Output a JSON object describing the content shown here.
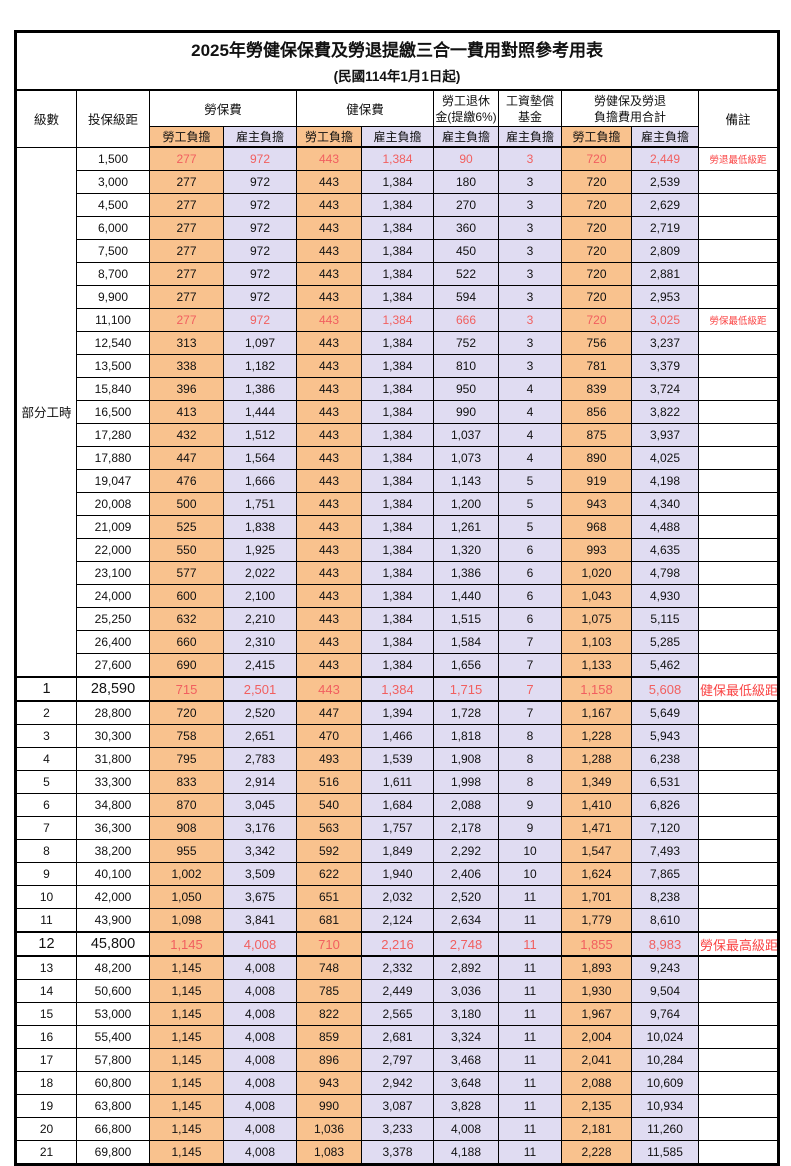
{
  "title": "2025年勞健保保費及勞退提繳三合一費用對照參考用表",
  "subtitle": "(民國114年1月1日起)",
  "header": {
    "level": "級數",
    "salary": "投保級距",
    "labor": "勞保費",
    "health": "健保費",
    "pension_line1": "勞工退休",
    "pension_line2": "金(提繳6%)",
    "wage_line1": "工資墊償",
    "wage_line2": "基金",
    "total_line1": "勞健保及勞退",
    "total_line2": "負擔費用合計",
    "remark": "備註",
    "employee": "勞工負擔",
    "employer": "雇主負擔"
  },
  "group_label": "部分工時",
  "colors": {
    "employee_bg": "#F9C28E",
    "employer_bg": "#E0DCF2",
    "value_red": "#F15F5F",
    "remark_red": "#FA4444"
  },
  "rows": [
    {
      "level": "",
      "salary": "1,500",
      "labor_emp": "277",
      "labor_er": "972",
      "health_emp": "443",
      "health_er": "1,384",
      "pension_er": "90",
      "wage_er": "3",
      "total_emp": "720",
      "total_er": "2,449",
      "remark": "勞退最低級距",
      "red": true,
      "emph": false
    },
    {
      "level": "",
      "salary": "3,000",
      "labor_emp": "277",
      "labor_er": "972",
      "health_emp": "443",
      "health_er": "1,384",
      "pension_er": "180",
      "wage_er": "3",
      "total_emp": "720",
      "total_er": "2,539",
      "remark": "",
      "red": false,
      "emph": false
    },
    {
      "level": "",
      "salary": "4,500",
      "labor_emp": "277",
      "labor_er": "972",
      "health_emp": "443",
      "health_er": "1,384",
      "pension_er": "270",
      "wage_er": "3",
      "total_emp": "720",
      "total_er": "2,629",
      "remark": "",
      "red": false,
      "emph": false
    },
    {
      "level": "",
      "salary": "6,000",
      "labor_emp": "277",
      "labor_er": "972",
      "health_emp": "443",
      "health_er": "1,384",
      "pension_er": "360",
      "wage_er": "3",
      "total_emp": "720",
      "total_er": "2,719",
      "remark": "",
      "red": false,
      "emph": false
    },
    {
      "level": "",
      "salary": "7,500",
      "labor_emp": "277",
      "labor_er": "972",
      "health_emp": "443",
      "health_er": "1,384",
      "pension_er": "450",
      "wage_er": "3",
      "total_emp": "720",
      "total_er": "2,809",
      "remark": "",
      "red": false,
      "emph": false
    },
    {
      "level": "",
      "salary": "8,700",
      "labor_emp": "277",
      "labor_er": "972",
      "health_emp": "443",
      "health_er": "1,384",
      "pension_er": "522",
      "wage_er": "3",
      "total_emp": "720",
      "total_er": "2,881",
      "remark": "",
      "red": false,
      "emph": false
    },
    {
      "level": "",
      "salary": "9,900",
      "labor_emp": "277",
      "labor_er": "972",
      "health_emp": "443",
      "health_er": "1,384",
      "pension_er": "594",
      "wage_er": "3",
      "total_emp": "720",
      "total_er": "2,953",
      "remark": "",
      "red": false,
      "emph": false
    },
    {
      "level": "",
      "salary": "11,100",
      "labor_emp": "277",
      "labor_er": "972",
      "health_emp": "443",
      "health_er": "1,384",
      "pension_er": "666",
      "wage_er": "3",
      "total_emp": "720",
      "total_er": "3,025",
      "remark": "勞保最低級距",
      "red": true,
      "emph": false
    },
    {
      "level": "",
      "salary": "12,540",
      "labor_emp": "313",
      "labor_er": "1,097",
      "health_emp": "443",
      "health_er": "1,384",
      "pension_er": "752",
      "wage_er": "3",
      "total_emp": "756",
      "total_er": "3,237",
      "remark": "",
      "red": false,
      "emph": false
    },
    {
      "level": "",
      "salary": "13,500",
      "labor_emp": "338",
      "labor_er": "1,182",
      "health_emp": "443",
      "health_er": "1,384",
      "pension_er": "810",
      "wage_er": "3",
      "total_emp": "781",
      "total_er": "3,379",
      "remark": "",
      "red": false,
      "emph": false
    },
    {
      "level": "",
      "salary": "15,840",
      "labor_emp": "396",
      "labor_er": "1,386",
      "health_emp": "443",
      "health_er": "1,384",
      "pension_er": "950",
      "wage_er": "4",
      "total_emp": "839",
      "total_er": "3,724",
      "remark": "",
      "red": false,
      "emph": false
    },
    {
      "level": "",
      "salary": "16,500",
      "labor_emp": "413",
      "labor_er": "1,444",
      "health_emp": "443",
      "health_er": "1,384",
      "pension_er": "990",
      "wage_er": "4",
      "total_emp": "856",
      "total_er": "3,822",
      "remark": "",
      "red": false,
      "emph": false
    },
    {
      "level": "",
      "salary": "17,280",
      "labor_emp": "432",
      "labor_er": "1,512",
      "health_emp": "443",
      "health_er": "1,384",
      "pension_er": "1,037",
      "wage_er": "4",
      "total_emp": "875",
      "total_er": "3,937",
      "remark": "",
      "red": false,
      "emph": false
    },
    {
      "level": "",
      "salary": "17,880",
      "labor_emp": "447",
      "labor_er": "1,564",
      "health_emp": "443",
      "health_er": "1,384",
      "pension_er": "1,073",
      "wage_er": "4",
      "total_emp": "890",
      "total_er": "4,025",
      "remark": "",
      "red": false,
      "emph": false
    },
    {
      "level": "",
      "salary": "19,047",
      "labor_emp": "476",
      "labor_er": "1,666",
      "health_emp": "443",
      "health_er": "1,384",
      "pension_er": "1,143",
      "wage_er": "5",
      "total_emp": "919",
      "total_er": "4,198",
      "remark": "",
      "red": false,
      "emph": false
    },
    {
      "level": "",
      "salary": "20,008",
      "labor_emp": "500",
      "labor_er": "1,751",
      "health_emp": "443",
      "health_er": "1,384",
      "pension_er": "1,200",
      "wage_er": "5",
      "total_emp": "943",
      "total_er": "4,340",
      "remark": "",
      "red": false,
      "emph": false
    },
    {
      "level": "",
      "salary": "21,009",
      "labor_emp": "525",
      "labor_er": "1,838",
      "health_emp": "443",
      "health_er": "1,384",
      "pension_er": "1,261",
      "wage_er": "5",
      "total_emp": "968",
      "total_er": "4,488",
      "remark": "",
      "red": false,
      "emph": false
    },
    {
      "level": "",
      "salary": "22,000",
      "labor_emp": "550",
      "labor_er": "1,925",
      "health_emp": "443",
      "health_er": "1,384",
      "pension_er": "1,320",
      "wage_er": "6",
      "total_emp": "993",
      "total_er": "4,635",
      "remark": "",
      "red": false,
      "emph": false
    },
    {
      "level": "",
      "salary": "23,100",
      "labor_emp": "577",
      "labor_er": "2,022",
      "health_emp": "443",
      "health_er": "1,384",
      "pension_er": "1,386",
      "wage_er": "6",
      "total_emp": "1,020",
      "total_er": "4,798",
      "remark": "",
      "red": false,
      "emph": false
    },
    {
      "level": "",
      "salary": "24,000",
      "labor_emp": "600",
      "labor_er": "2,100",
      "health_emp": "443",
      "health_er": "1,384",
      "pension_er": "1,440",
      "wage_er": "6",
      "total_emp": "1,043",
      "total_er": "4,930",
      "remark": "",
      "red": false,
      "emph": false
    },
    {
      "level": "",
      "salary": "25,250",
      "labor_emp": "632",
      "labor_er": "2,210",
      "health_emp": "443",
      "health_er": "1,384",
      "pension_er": "1,515",
      "wage_er": "6",
      "total_emp": "1,075",
      "total_er": "5,115",
      "remark": "",
      "red": false,
      "emph": false
    },
    {
      "level": "",
      "salary": "26,400",
      "labor_emp": "660",
      "labor_er": "2,310",
      "health_emp": "443",
      "health_er": "1,384",
      "pension_er": "1,584",
      "wage_er": "7",
      "total_emp": "1,103",
      "total_er": "5,285",
      "remark": "",
      "red": false,
      "emph": false
    },
    {
      "level": "",
      "salary": "27,600",
      "labor_emp": "690",
      "labor_er": "2,415",
      "health_emp": "443",
      "health_er": "1,384",
      "pension_er": "1,656",
      "wage_er": "7",
      "total_emp": "1,133",
      "total_er": "5,462",
      "remark": "",
      "red": false,
      "emph": false
    },
    {
      "level": "1",
      "salary": "28,590",
      "labor_emp": "715",
      "labor_er": "2,501",
      "health_emp": "443",
      "health_er": "1,384",
      "pension_er": "1,715",
      "wage_er": "7",
      "total_emp": "1,158",
      "total_er": "5,608",
      "remark": "健保最低級距",
      "red": true,
      "emph": true
    },
    {
      "level": "2",
      "salary": "28,800",
      "labor_emp": "720",
      "labor_er": "2,520",
      "health_emp": "447",
      "health_er": "1,394",
      "pension_er": "1,728",
      "wage_er": "7",
      "total_emp": "1,167",
      "total_er": "5,649",
      "remark": "",
      "red": false,
      "emph": false
    },
    {
      "level": "3",
      "salary": "30,300",
      "labor_emp": "758",
      "labor_er": "2,651",
      "health_emp": "470",
      "health_er": "1,466",
      "pension_er": "1,818",
      "wage_er": "8",
      "total_emp": "1,228",
      "total_er": "5,943",
      "remark": "",
      "red": false,
      "emph": false
    },
    {
      "level": "4",
      "salary": "31,800",
      "labor_emp": "795",
      "labor_er": "2,783",
      "health_emp": "493",
      "health_er": "1,539",
      "pension_er": "1,908",
      "wage_er": "8",
      "total_emp": "1,288",
      "total_er": "6,238",
      "remark": "",
      "red": false,
      "emph": false
    },
    {
      "level": "5",
      "salary": "33,300",
      "labor_emp": "833",
      "labor_er": "2,914",
      "health_emp": "516",
      "health_er": "1,611",
      "pension_er": "1,998",
      "wage_er": "8",
      "total_emp": "1,349",
      "total_er": "6,531",
      "remark": "",
      "red": false,
      "emph": false
    },
    {
      "level": "6",
      "salary": "34,800",
      "labor_emp": "870",
      "labor_er": "3,045",
      "health_emp": "540",
      "health_er": "1,684",
      "pension_er": "2,088",
      "wage_er": "9",
      "total_emp": "1,410",
      "total_er": "6,826",
      "remark": "",
      "red": false,
      "emph": false
    },
    {
      "level": "7",
      "salary": "36,300",
      "labor_emp": "908",
      "labor_er": "3,176",
      "health_emp": "563",
      "health_er": "1,757",
      "pension_er": "2,178",
      "wage_er": "9",
      "total_emp": "1,471",
      "total_er": "7,120",
      "remark": "",
      "red": false,
      "emph": false
    },
    {
      "level": "8",
      "salary": "38,200",
      "labor_emp": "955",
      "labor_er": "3,342",
      "health_emp": "592",
      "health_er": "1,849",
      "pension_er": "2,292",
      "wage_er": "10",
      "total_emp": "1,547",
      "total_er": "7,493",
      "remark": "",
      "red": false,
      "emph": false
    },
    {
      "level": "9",
      "salary": "40,100",
      "labor_emp": "1,002",
      "labor_er": "3,509",
      "health_emp": "622",
      "health_er": "1,940",
      "pension_er": "2,406",
      "wage_er": "10",
      "total_emp": "1,624",
      "total_er": "7,865",
      "remark": "",
      "red": false,
      "emph": false
    },
    {
      "level": "10",
      "salary": "42,000",
      "labor_emp": "1,050",
      "labor_er": "3,675",
      "health_emp": "651",
      "health_er": "2,032",
      "pension_er": "2,520",
      "wage_er": "11",
      "total_emp": "1,701",
      "total_er": "8,238",
      "remark": "",
      "red": false,
      "emph": false
    },
    {
      "level": "11",
      "salary": "43,900",
      "labor_emp": "1,098",
      "labor_er": "3,841",
      "health_emp": "681",
      "health_er": "2,124",
      "pension_er": "2,634",
      "wage_er": "11",
      "total_emp": "1,779",
      "total_er": "8,610",
      "remark": "",
      "red": false,
      "emph": false
    },
    {
      "level": "12",
      "salary": "45,800",
      "labor_emp": "1,145",
      "labor_er": "4,008",
      "health_emp": "710",
      "health_er": "2,216",
      "pension_er": "2,748",
      "wage_er": "11",
      "total_emp": "1,855",
      "total_er": "8,983",
      "remark": "勞保最高級距",
      "red": true,
      "emph": true
    },
    {
      "level": "13",
      "salary": "48,200",
      "labor_emp": "1,145",
      "labor_er": "4,008",
      "health_emp": "748",
      "health_er": "2,332",
      "pension_er": "2,892",
      "wage_er": "11",
      "total_emp": "1,893",
      "total_er": "9,243",
      "remark": "",
      "red": false,
      "emph": false
    },
    {
      "level": "14",
      "salary": "50,600",
      "labor_emp": "1,145",
      "labor_er": "4,008",
      "health_emp": "785",
      "health_er": "2,449",
      "pension_er": "3,036",
      "wage_er": "11",
      "total_emp": "1,930",
      "total_er": "9,504",
      "remark": "",
      "red": false,
      "emph": false
    },
    {
      "level": "15",
      "salary": "53,000",
      "labor_emp": "1,145",
      "labor_er": "4,008",
      "health_emp": "822",
      "health_er": "2,565",
      "pension_er": "3,180",
      "wage_er": "11",
      "total_emp": "1,967",
      "total_er": "9,764",
      "remark": "",
      "red": false,
      "emph": false
    },
    {
      "level": "16",
      "salary": "55,400",
      "labor_emp": "1,145",
      "labor_er": "4,008",
      "health_emp": "859",
      "health_er": "2,681",
      "pension_er": "3,324",
      "wage_er": "11",
      "total_emp": "2,004",
      "total_er": "10,024",
      "remark": "",
      "red": false,
      "emph": false
    },
    {
      "level": "17",
      "salary": "57,800",
      "labor_emp": "1,145",
      "labor_er": "4,008",
      "health_emp": "896",
      "health_er": "2,797",
      "pension_er": "3,468",
      "wage_er": "11",
      "total_emp": "2,041",
      "total_er": "10,284",
      "remark": "",
      "red": false,
      "emph": false
    },
    {
      "level": "18",
      "salary": "60,800",
      "labor_emp": "1,145",
      "labor_er": "4,008",
      "health_emp": "943",
      "health_er": "2,942",
      "pension_er": "3,648",
      "wage_er": "11",
      "total_emp": "2,088",
      "total_er": "10,609",
      "remark": "",
      "red": false,
      "emph": false
    },
    {
      "level": "19",
      "salary": "63,800",
      "labor_emp": "1,145",
      "labor_er": "4,008",
      "health_emp": "990",
      "health_er": "3,087",
      "pension_er": "3,828",
      "wage_er": "11",
      "total_emp": "2,135",
      "total_er": "10,934",
      "remark": "",
      "red": false,
      "emph": false
    },
    {
      "level": "20",
      "salary": "66,800",
      "labor_emp": "1,145",
      "labor_er": "4,008",
      "health_emp": "1,036",
      "health_er": "3,233",
      "pension_er": "4,008",
      "wage_er": "11",
      "total_emp": "2,181",
      "total_er": "11,260",
      "remark": "",
      "red": false,
      "emph": false
    },
    {
      "level": "21",
      "salary": "69,800",
      "labor_emp": "1,145",
      "labor_er": "4,008",
      "health_emp": "1,083",
      "health_er": "3,378",
      "pension_er": "4,188",
      "wage_er": "11",
      "total_emp": "2,228",
      "total_er": "11,585",
      "remark": "",
      "red": false,
      "emph": false
    }
  ]
}
